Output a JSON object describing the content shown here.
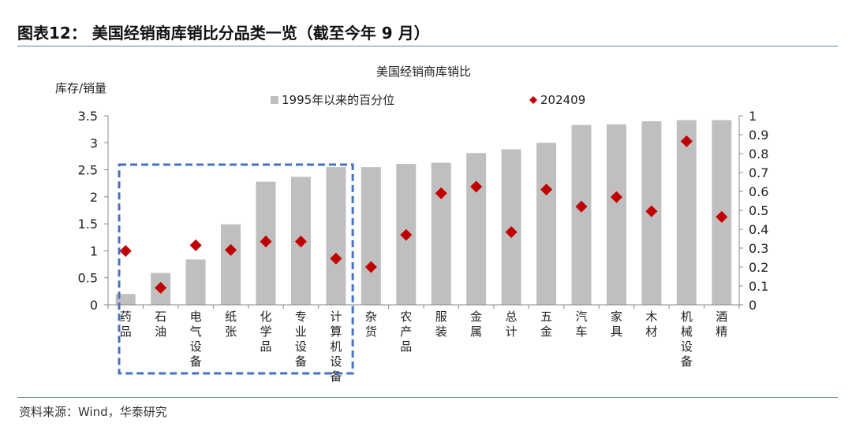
{
  "figure": {
    "title": "图表12：  美国经销商库销比分品类一览（截至今年 9 月）",
    "source": "资料来源：Wind，华泰研究"
  },
  "chart_data": {
    "type": "bar",
    "title": "美国经销商库销比",
    "ylabel": "库存/销量",
    "ylim": [
      0,
      3.5
    ],
    "y_ticks": [
      "0",
      "0.5",
      "1",
      "1.5",
      "2",
      "2.5",
      "3",
      "3.5"
    ],
    "y2lim": [
      0,
      1
    ],
    "y2_ticks": [
      "0",
      "0.1",
      "0.2",
      "0.3",
      "0.4",
      "0.5",
      "0.6",
      "0.7",
      "0.8",
      "0.9",
      "1"
    ],
    "grid": false,
    "legend_position": "top",
    "categories": [
      "药品",
      "石油",
      "电气设备",
      "纸张",
      "化学品",
      "专业设备",
      "计算机设备",
      "杂货",
      "农产品",
      "服装",
      "金属",
      "总计",
      "五金",
      "汽车",
      "家具",
      "木材",
      "机械设备",
      "酒精"
    ],
    "series": [
      {
        "name": "1995年以来的百分位",
        "type": "bar",
        "axis": "left",
        "color": "#bfbfbf",
        "values": [
          0.2,
          0.59,
          0.84,
          1.49,
          2.28,
          2.37,
          2.55,
          2.55,
          2.61,
          2.63,
          2.81,
          2.88,
          3.0,
          3.33,
          3.34,
          3.4,
          3.42,
          3.42
        ]
      },
      {
        "name": "202409",
        "type": "scatter",
        "marker": "diamond",
        "axis": "right",
        "color": "#c00000",
        "values": [
          0.285,
          0.09,
          0.315,
          0.29,
          0.335,
          0.335,
          0.245,
          0.2,
          0.37,
          0.59,
          0.625,
          0.385,
          0.61,
          0.52,
          0.57,
          0.495,
          0.865,
          0.465
        ]
      }
    ],
    "highlight_box": {
      "from_category": "药品",
      "to_category": "计算机设备",
      "style": "dashed",
      "color": "#4472c4"
    }
  }
}
